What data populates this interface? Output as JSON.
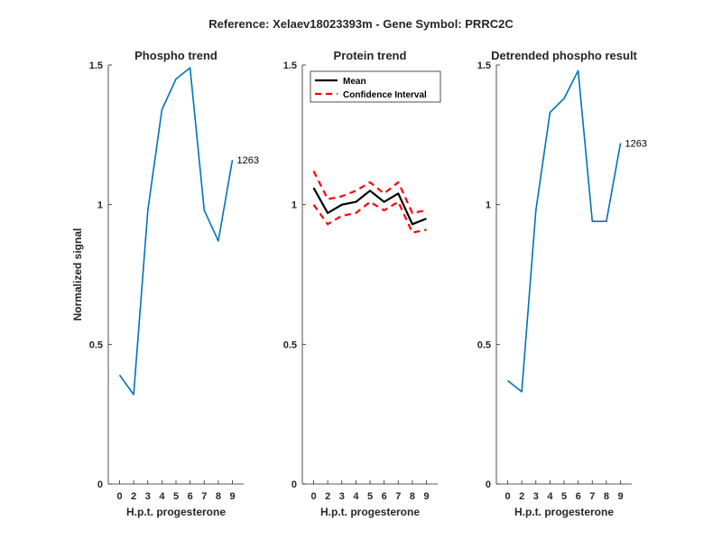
{
  "figure_title": "Reference:  Xelaev18023393m - Gene Symbol:  PRRC2C",
  "colors": {
    "phospho": "#0072bd",
    "mean": "#000000",
    "ci": "#ff0000",
    "axis": "#262626"
  },
  "chart_data": [
    {
      "type": "line",
      "title": "Phospho trend",
      "xlabel": "H.p.t. progesterone",
      "ylabel": "Normalized signal",
      "categories": [
        "0",
        "2",
        "3",
        "4",
        "5",
        "6",
        "7",
        "8",
        "9"
      ],
      "ylim": [
        0,
        1.5
      ],
      "yticks": [
        "0",
        "0.5",
        "1",
        "1.5"
      ],
      "series": [
        {
          "values": [
            0.39,
            0.32,
            0.98,
            1.34,
            1.45,
            1.49,
            0.98,
            0.87,
            1.16
          ]
        }
      ],
      "annotation": "1263",
      "grid": false
    },
    {
      "type": "line",
      "title": "Protein trend",
      "xlabel": "H.p.t. progesterone",
      "ylabel": "",
      "categories": [
        "0",
        "2",
        "3",
        "4",
        "5",
        "6",
        "7",
        "8",
        "9"
      ],
      "ylim": [
        0,
        1.5
      ],
      "yticks": [
        "0",
        "0.5",
        "1",
        "1.5"
      ],
      "series": [
        {
          "name": "Mean",
          "values": [
            1.06,
            0.97,
            1.0,
            1.01,
            1.05,
            1.01,
            1.04,
            0.93,
            0.95
          ]
        },
        {
          "name": "Confidence Interval",
          "values": [
            1.12,
            1.02,
            1.03,
            1.05,
            1.08,
            1.04,
            1.08,
            0.97,
            0.98
          ]
        },
        {
          "name": "Confidence Interval",
          "values": [
            1.0,
            0.93,
            0.96,
            0.97,
            1.01,
            0.98,
            1.01,
            0.9,
            0.91
          ]
        }
      ],
      "legend": {
        "position": "top-left",
        "entries": [
          "Mean",
          "Confidence Interval"
        ]
      },
      "grid": false
    },
    {
      "type": "line",
      "title": "Detrended phospho result",
      "xlabel": "H.p.t. progesterone",
      "ylabel": "",
      "categories": [
        "0",
        "2",
        "3",
        "4",
        "5",
        "6",
        "7",
        "8",
        "9"
      ],
      "ylim": [
        0,
        1.5
      ],
      "yticks": [
        "0",
        "0.5",
        "1",
        "1.5"
      ],
      "series": [
        {
          "values": [
            0.37,
            0.33,
            0.98,
            1.33,
            1.38,
            1.48,
            0.94,
            0.94,
            1.22
          ]
        }
      ],
      "annotation": "1263",
      "grid": false
    }
  ]
}
